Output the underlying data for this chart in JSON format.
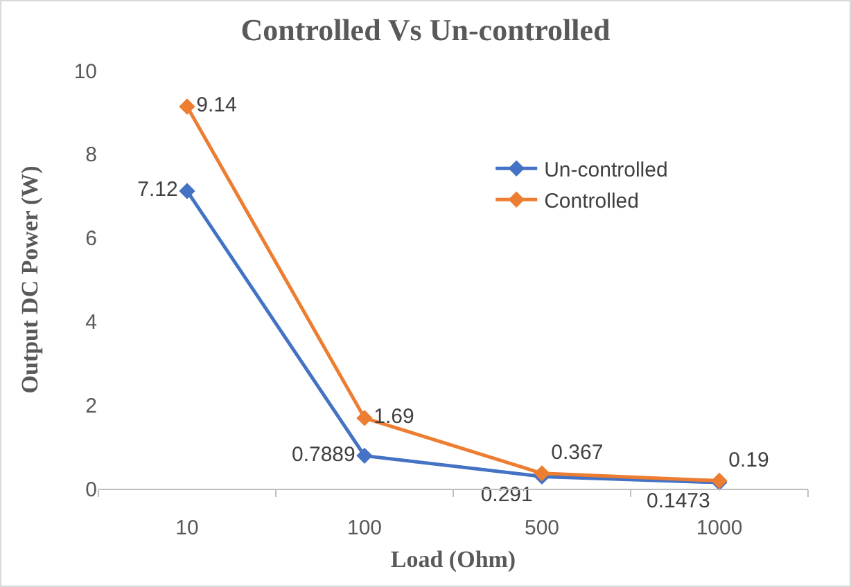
{
  "chart_data": {
    "type": "line",
    "title": "Controlled Vs Un-controlled",
    "xlabel": "Load (Ohm)",
    "ylabel": "Output DC Power (W)",
    "categories": [
      "10",
      "100",
      "500",
      "1000"
    ],
    "series": [
      {
        "name": "Un-controlled",
        "color": "#4472c4",
        "values": [
          7.12,
          0.7889,
          0.291,
          0.1473
        ]
      },
      {
        "name": "Controlled",
        "color": "#ed7d31",
        "values": [
          9.14,
          1.69,
          0.367,
          0.19
        ]
      }
    ],
    "ylim": [
      0,
      10
    ],
    "yticks": [
      0,
      2,
      4,
      6,
      8,
      10
    ],
    "grid": false,
    "legend": "right",
    "marker": "diamond",
    "line_style": "solid",
    "data_labels": true
  }
}
